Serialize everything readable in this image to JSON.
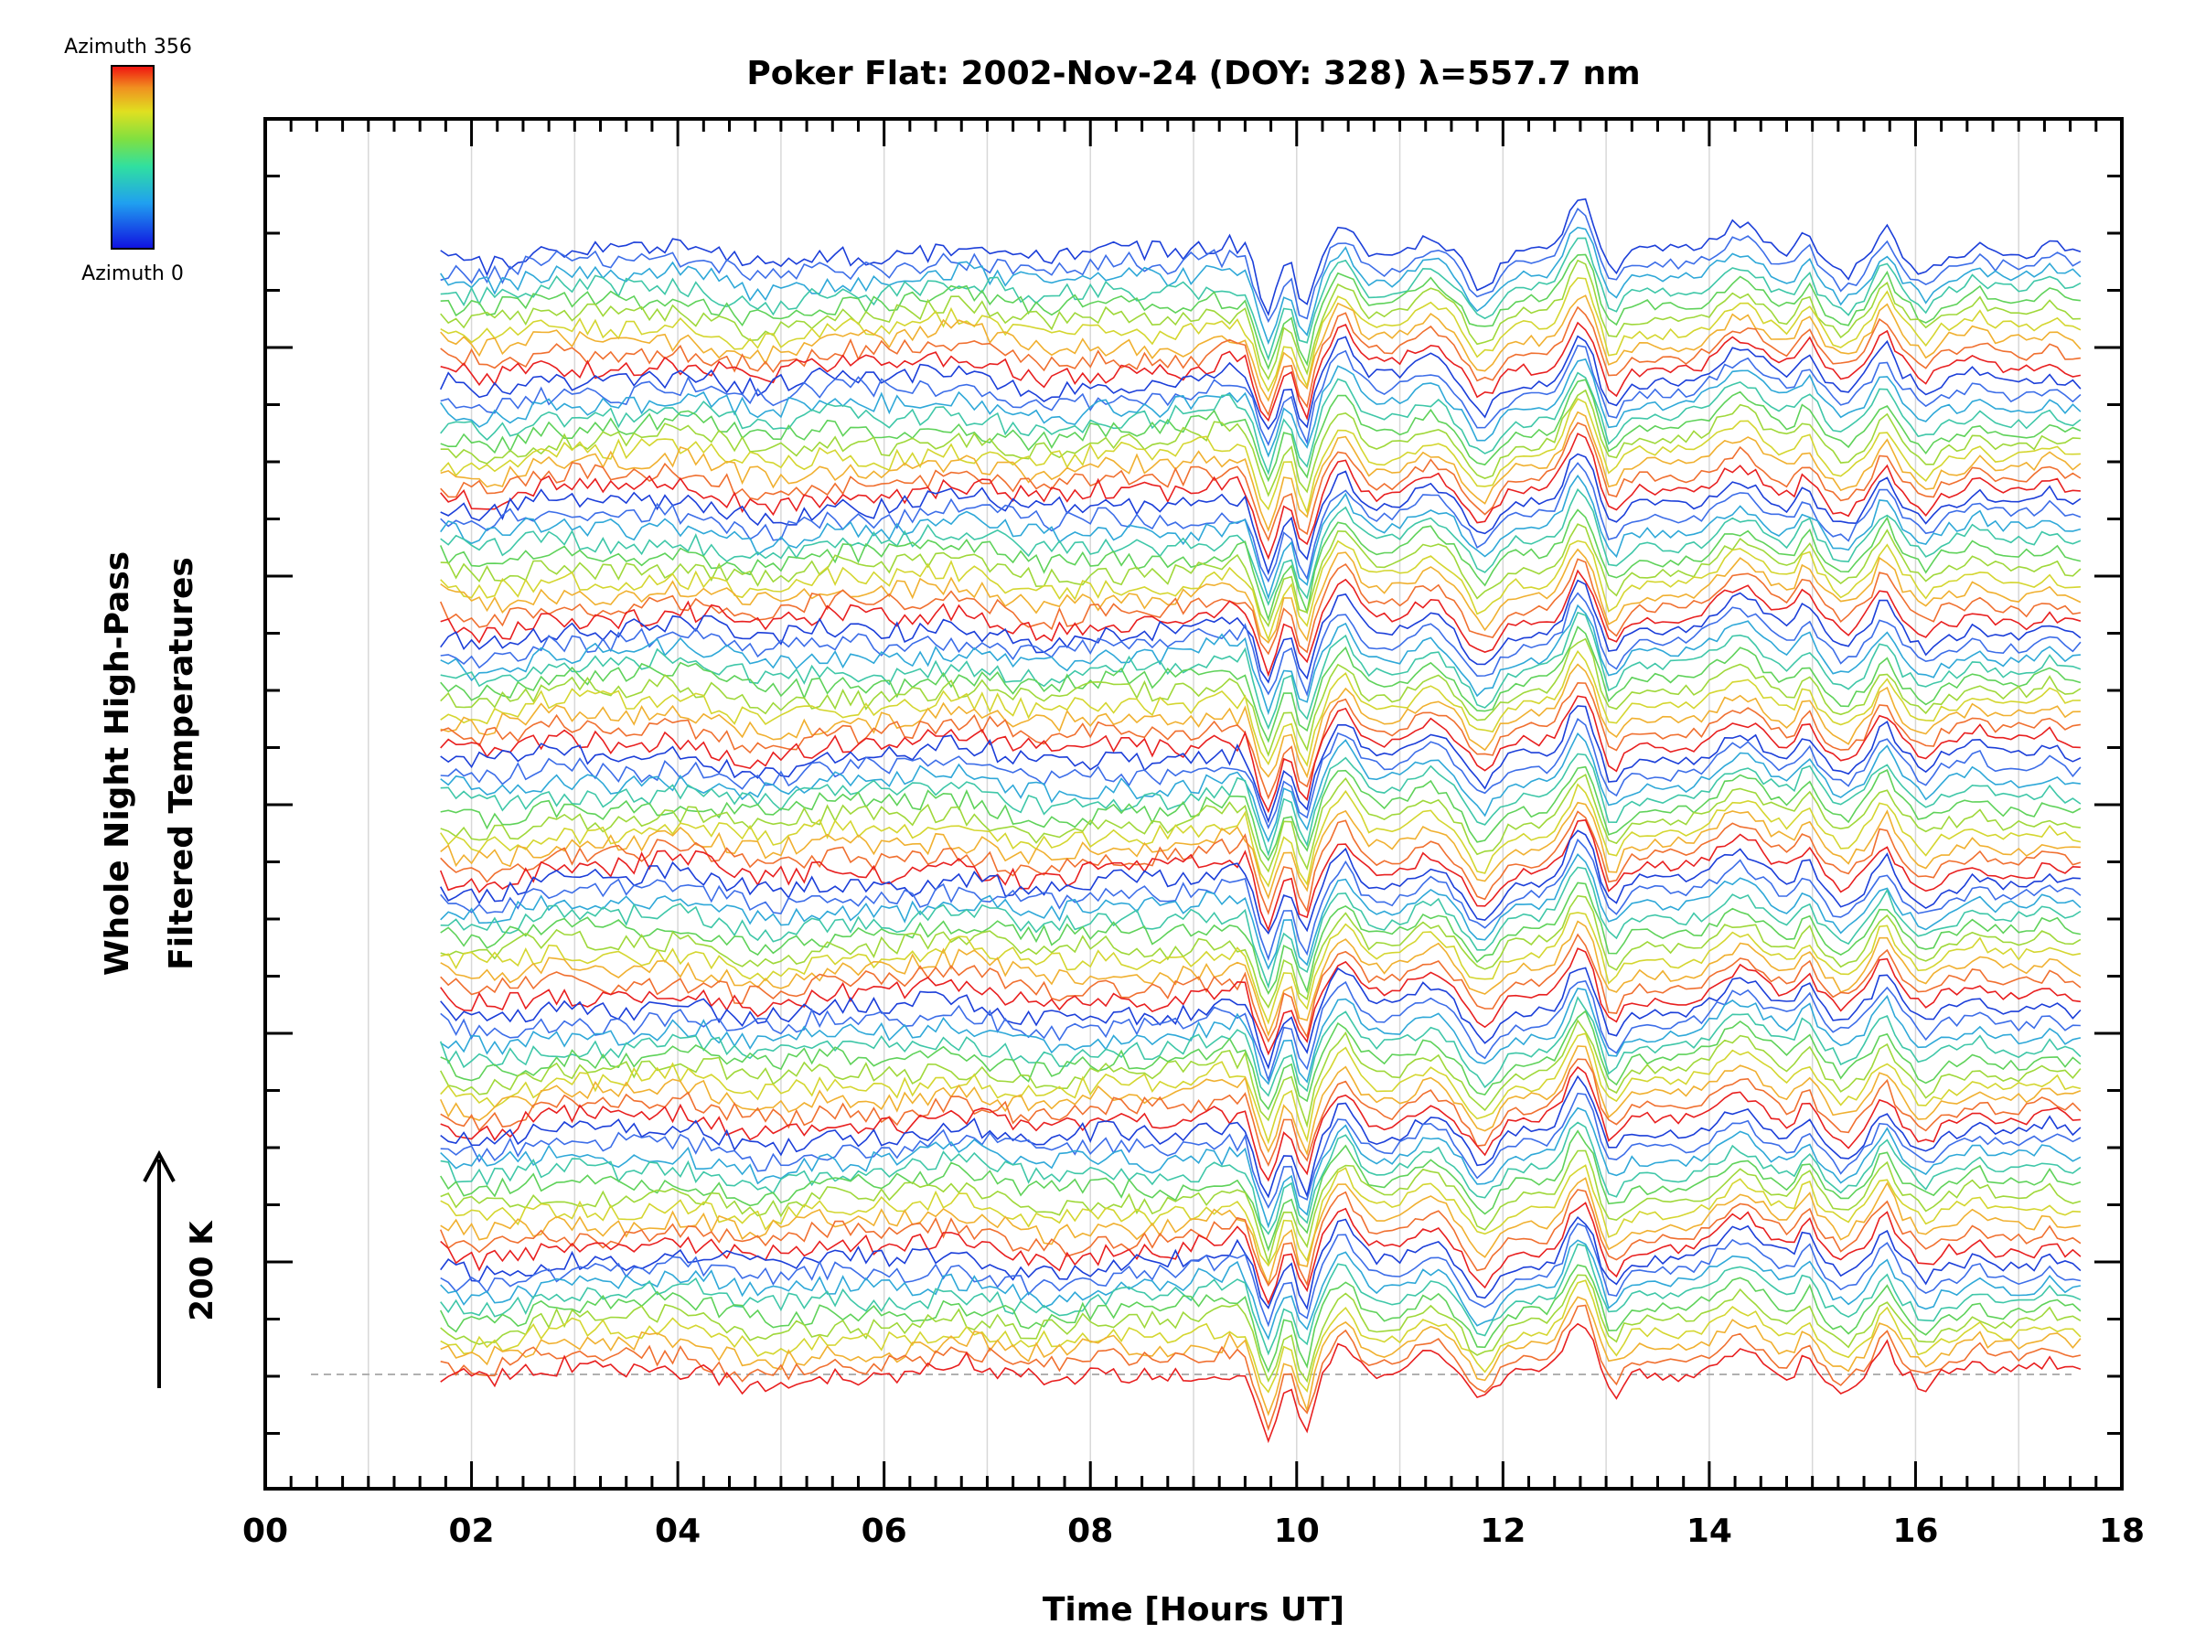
{
  "chart_data": {
    "type": "line",
    "title": "Poker Flat: 2002-Nov-24 (DOY: 328) λ=557.7 nm",
    "xlabel": "Time [Hours UT]",
    "ylabel_line1": "Whole Night High-Pass",
    "ylabel_line2": "Filtered Temperatures",
    "xlim": [
      0,
      18
    ],
    "x_ticks": [
      "00",
      "02",
      "04",
      "06",
      "08",
      "10",
      "12",
      "14",
      "16",
      "18"
    ],
    "x_grid_hours": [
      1,
      2,
      3,
      4,
      5,
      6,
      7,
      8,
      9,
      10,
      11,
      12,
      13,
      14,
      15,
      16,
      17
    ],
    "scale_label": "200 K",
    "scale_kelvin": 200,
    "colorbar": {
      "top_label": "Azimuth 356",
      "bottom_label": "Azimuth 0",
      "azimuth_range": [
        0,
        356
      ]
    },
    "data_time_range_hours": [
      1.7,
      17.6
    ],
    "series_count": 90,
    "color_cycle": [
      "#1c3fd9",
      "#3d6ee8",
      "#2fa8d8",
      "#3fc7a8",
      "#5fd25a",
      "#9fd83a",
      "#d4d630",
      "#f0b030",
      "#f07030",
      "#e82020"
    ],
    "dip_times_hours": [
      9.7,
      10.05
    ],
    "peak_times_hours": [
      10.45,
      11.3,
      12.75,
      14.3,
      14.95,
      15.7
    ],
    "grid": true
  }
}
